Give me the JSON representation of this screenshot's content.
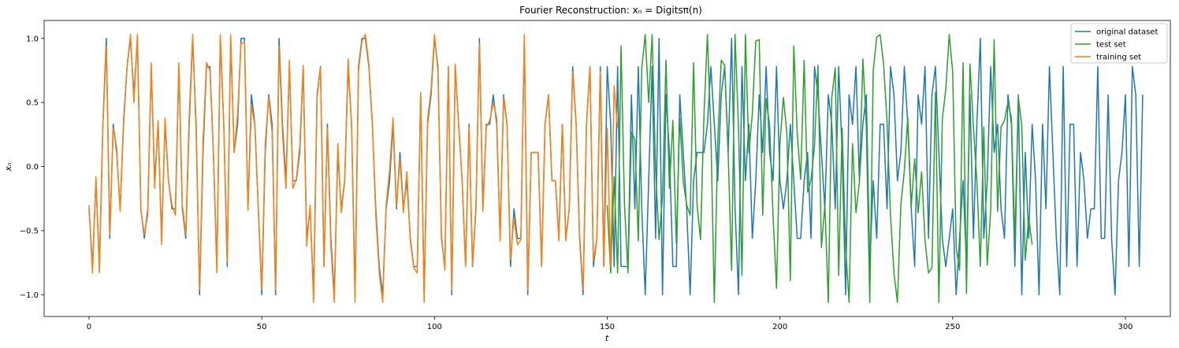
{
  "chart_data": {
    "type": "line",
    "title": "Fourier Reconstruction: xₙ = Digitsπ(n)",
    "xlabel": "t",
    "ylabel": "xₙ",
    "xlim": [
      -13,
      313
    ],
    "ylim": [
      -1.17,
      1.14
    ],
    "xticks": [
      0,
      50,
      100,
      150,
      200,
      250,
      300
    ],
    "yticks": [
      -1.0,
      -0.5,
      0.0,
      0.5,
      1.0
    ],
    "ytick_labels": [
      "−1.0",
      "−0.5",
      "0.0",
      "0.5",
      "1.0"
    ],
    "grid": false,
    "legend_position": "top-right",
    "series": [
      {
        "name": "original dataset",
        "color": "#1f77b4",
        "x_start": 0,
        "values": [
          -0.33,
          -0.78,
          -0.11,
          -0.78,
          0.33,
          1.0,
          -0.56,
          0.33,
          0.11,
          -0.33,
          0.33,
          0.78,
          1.0,
          0.56,
          1.0,
          -0.33,
          -0.56,
          -0.33,
          0.78,
          -0.11,
          0.33,
          -0.56,
          0.33,
          -0.11,
          -0.33,
          -0.33,
          0.78,
          -0.33,
          -0.56,
          0.33,
          1.0,
          0.33,
          -1.0,
          0.11,
          0.78,
          0.78,
          0.11,
          -0.78,
          1.0,
          0.33,
          -0.78,
          1.0,
          0.11,
          0.33,
          1.0,
          1.0,
          -0.33,
          0.56,
          0.33,
          -0.33,
          -1.0,
          0.11,
          0.56,
          0.33,
          -1.0,
          1.0,
          0.33,
          -0.11,
          0.78,
          -0.11,
          -0.11,
          0.11,
          0.78,
          -0.56,
          -0.33,
          -1.0,
          0.56,
          0.78,
          -0.78,
          0.33,
          -0.56,
          -1.0,
          0.11,
          -0.33,
          -0.11,
          0.78,
          0.33,
          -1.0,
          0.78,
          1.0,
          1.0,
          0.78,
          0.33,
          -0.33,
          -0.78,
          -1.0,
          -0.33,
          -0.11,
          0.33,
          -0.33,
          0.11,
          -0.33,
          -0.11,
          -0.56,
          -0.78,
          -0.78,
          0.56,
          -1.0,
          0.33,
          0.56,
          1.0,
          0.78,
          -0.56,
          -0.78,
          0.78,
          -1.0,
          0.78,
          0.33,
          -0.11,
          -0.78,
          0.33,
          -0.78,
          -0.33,
          1.0,
          -0.33,
          0.33,
          0.33,
          0.56,
          0.33,
          -0.56,
          0.56,
          0.33,
          -0.78,
          -0.33,
          -0.56,
          -0.56,
          1.0,
          -1.0,
          0.11,
          0.11,
          0.11,
          -0.78,
          0.33,
          0.56,
          -0.11,
          -0.11,
          -0.56,
          0.33,
          -0.56,
          -0.33,
          0.78,
          0.33,
          -0.56,
          -1.0,
          0.33,
          0.78,
          -0.78,
          -0.56,
          0.78,
          -0.78,
          0.78,
          0.33,
          -0.78,
          0.78,
          -0.78,
          -0.78,
          -0.78,
          0.56,
          -0.33,
          0.78,
          -0.33,
          -1.0,
          -0.11,
          0.78,
          -0.56,
          1.0,
          -1.0,
          0.56,
          0.11,
          -0.78,
          -0.78,
          0.56,
          0.11,
          -0.33,
          -1.0,
          -0.11,
          0.11,
          0.11,
          0.11,
          0.33,
          0.78,
          0.33,
          -0.11,
          0.56,
          0.78,
          0.11,
          1.0,
          -0.33,
          -1.0,
          0.78,
          -0.11,
          0.33,
          -0.56,
          -0.11,
          0.56,
          0.11,
          0.78,
          0.11,
          -0.11,
          0.78,
          -0.11,
          -0.33,
          -0.11,
          0.33,
          -0.11,
          -0.56,
          -0.56,
          -0.11,
          0.11,
          -0.56,
          0.78,
          0.56,
          0.11,
          -0.33,
          0.56,
          0.33,
          -0.33,
          0.78,
          0.11,
          -1.0,
          0.56,
          0.33,
          0.78,
          -0.11,
          0.33,
          0.56,
          -0.78,
          -0.11,
          -0.56,
          0.33,
          0.33,
          -0.33,
          0.78,
          0.56,
          -0.11,
          0.11,
          0.78,
          0.33,
          -0.33,
          -0.78,
          0.56,
          0.33,
          0.78,
          -0.56,
          0.56,
          0.78,
          0.11,
          -0.56,
          -0.78,
          -0.56,
          -0.33,
          -1.0,
          -0.56,
          -0.11,
          -0.78,
          0.56,
          -0.56,
          0.33,
          1.0,
          -0.56,
          -0.11,
          0.78,
          0.11,
          0.33,
          -0.33,
          -0.56,
          0.56,
          0.33,
          -0.78,
          0.56,
          -1.0,
          0.11,
          -0.56,
          0.33,
          -0.11,
          -1.0,
          0.33,
          -0.33,
          0.78,
          0.11,
          -0.56,
          -1.0,
          0.78,
          -0.78,
          0.33,
          0.33,
          -0.78,
          0.11,
          -0.11,
          -0.56,
          -0.33,
          -0.33,
          0.78,
          -0.56,
          -0.56,
          0.56,
          -0.56,
          -1.0,
          -0.11,
          0.11,
          0.56,
          -0.78,
          0.78,
          0.56,
          -0.78,
          0.56
        ]
      },
      {
        "name": "test set",
        "color": "#2ca02c",
        "x_start": 150,
        "values": [
          -0.3,
          -0.83,
          -0.08,
          -0.83,
          0.94,
          -0.3,
          -0.83,
          0.27,
          0.21,
          -0.58,
          0.77,
          1.03,
          0.5,
          1.03,
          -0.03,
          -0.57,
          -0.24,
          0.83,
          -0.17,
          0.36,
          -0.6,
          0.38,
          -0.11,
          -0.3,
          -0.38,
          0.81,
          -0.3,
          -0.57,
          0.4,
          1.03,
          0.26,
          -1.06,
          0.2,
          0.83,
          0.79,
          0.11,
          -0.81,
          1.03,
          0.3,
          -0.85,
          1.03,
          0.11,
          0.41,
          0.98,
          0.99,
          -0.38,
          0.53,
          0.32,
          -0.38,
          -0.95,
          0.18,
          0.54,
          0.26,
          -0.89,
          0.94,
          0.26,
          -0.1,
          0.83,
          -0.2,
          -0.1,
          0.16,
          0.79,
          -0.63,
          -0.3,
          -1.06,
          0.54,
          0.77,
          -0.85,
          0.3,
          -0.62,
          -1.06,
          0.18,
          -0.36,
          -0.12,
          0.84,
          0.31,
          -1.06,
          0.75,
          1.01,
          1.03,
          0.8,
          0.35,
          -0.38,
          -0.83,
          -1.06,
          -0.3,
          -0.03,
          0.38,
          -0.31,
          0.06,
          -0.36,
          -0.04,
          -0.58,
          -0.83,
          -0.79,
          0.58,
          -1.06,
          0.37,
          0.6,
          1.03,
          0.74,
          -0.63,
          -0.81,
          0.81,
          -0.99,
          0.8,
          0.31,
          -0.11,
          -0.78,
          0.31,
          -0.77,
          -0.34,
          0.99,
          -0.35,
          0.31,
          0.36,
          0.5,
          0.38,
          -0.58,
          0.54,
          0.32,
          -0.73,
          -0.4,
          -0.61
        ]
      },
      {
        "name": "training set",
        "color": "#ff7f0e",
        "x_start": 0,
        "values": [
          -0.3,
          -0.83,
          -0.08,
          -0.83,
          0.31,
          0.94,
          -0.53,
          0.3,
          0.15,
          -0.35,
          0.37,
          0.78,
          1.03,
          0.5,
          1.03,
          -0.34,
          -0.53,
          -0.38,
          0.81,
          -0.17,
          0.36,
          -0.61,
          0.38,
          -0.11,
          -0.3,
          -0.38,
          0.81,
          -0.3,
          -0.53,
          0.4,
          1.03,
          0.26,
          -0.96,
          0.2,
          0.81,
          0.75,
          0.11,
          -0.83,
          1.03,
          0.33,
          -0.74,
          1.03,
          0.11,
          0.41,
          0.96,
          0.97,
          -0.34,
          0.48,
          0.32,
          -0.32,
          -0.96,
          0.18,
          0.54,
          0.26,
          -0.96,
          0.94,
          0.26,
          -0.17,
          0.83,
          -0.17,
          -0.1,
          0.16,
          0.79,
          -0.62,
          -0.3,
          -1.06,
          0.54,
          0.77,
          -0.78,
          0.3,
          -0.62,
          -1.06,
          0.18,
          -0.36,
          -0.12,
          0.84,
          0.31,
          -1.06,
          0.75,
          0.98,
          1.03,
          0.8,
          0.35,
          -0.38,
          -0.83,
          -1.06,
          -0.3,
          -0.03,
          0.38,
          -0.31,
          0.06,
          -0.36,
          -0.04,
          -0.58,
          -0.79,
          -0.83,
          0.58,
          -1.06,
          0.37,
          0.6,
          1.03,
          0.74,
          -0.53,
          -0.81,
          0.78,
          -0.96,
          0.8,
          0.31,
          -0.11,
          -0.78,
          0.31,
          -0.77,
          -0.3,
          0.96,
          -0.35,
          0.31,
          0.36,
          0.5,
          0.38,
          -0.58,
          0.54,
          0.32,
          -0.73,
          -0.4,
          -0.61,
          -0.57,
          1.03,
          -0.96,
          0.11,
          0.11,
          0.11,
          -0.78,
          0.33,
          0.56,
          -0.11,
          -0.11,
          -0.58,
          0.33,
          -0.58,
          -0.33,
          0.74,
          0.33,
          -0.53,
          -0.96,
          0.33,
          0.78,
          -0.74,
          -0.56,
          0.74,
          -0.78,
          0.3,
          -0.78,
          0.63,
          0.3
        ]
      }
    ]
  }
}
